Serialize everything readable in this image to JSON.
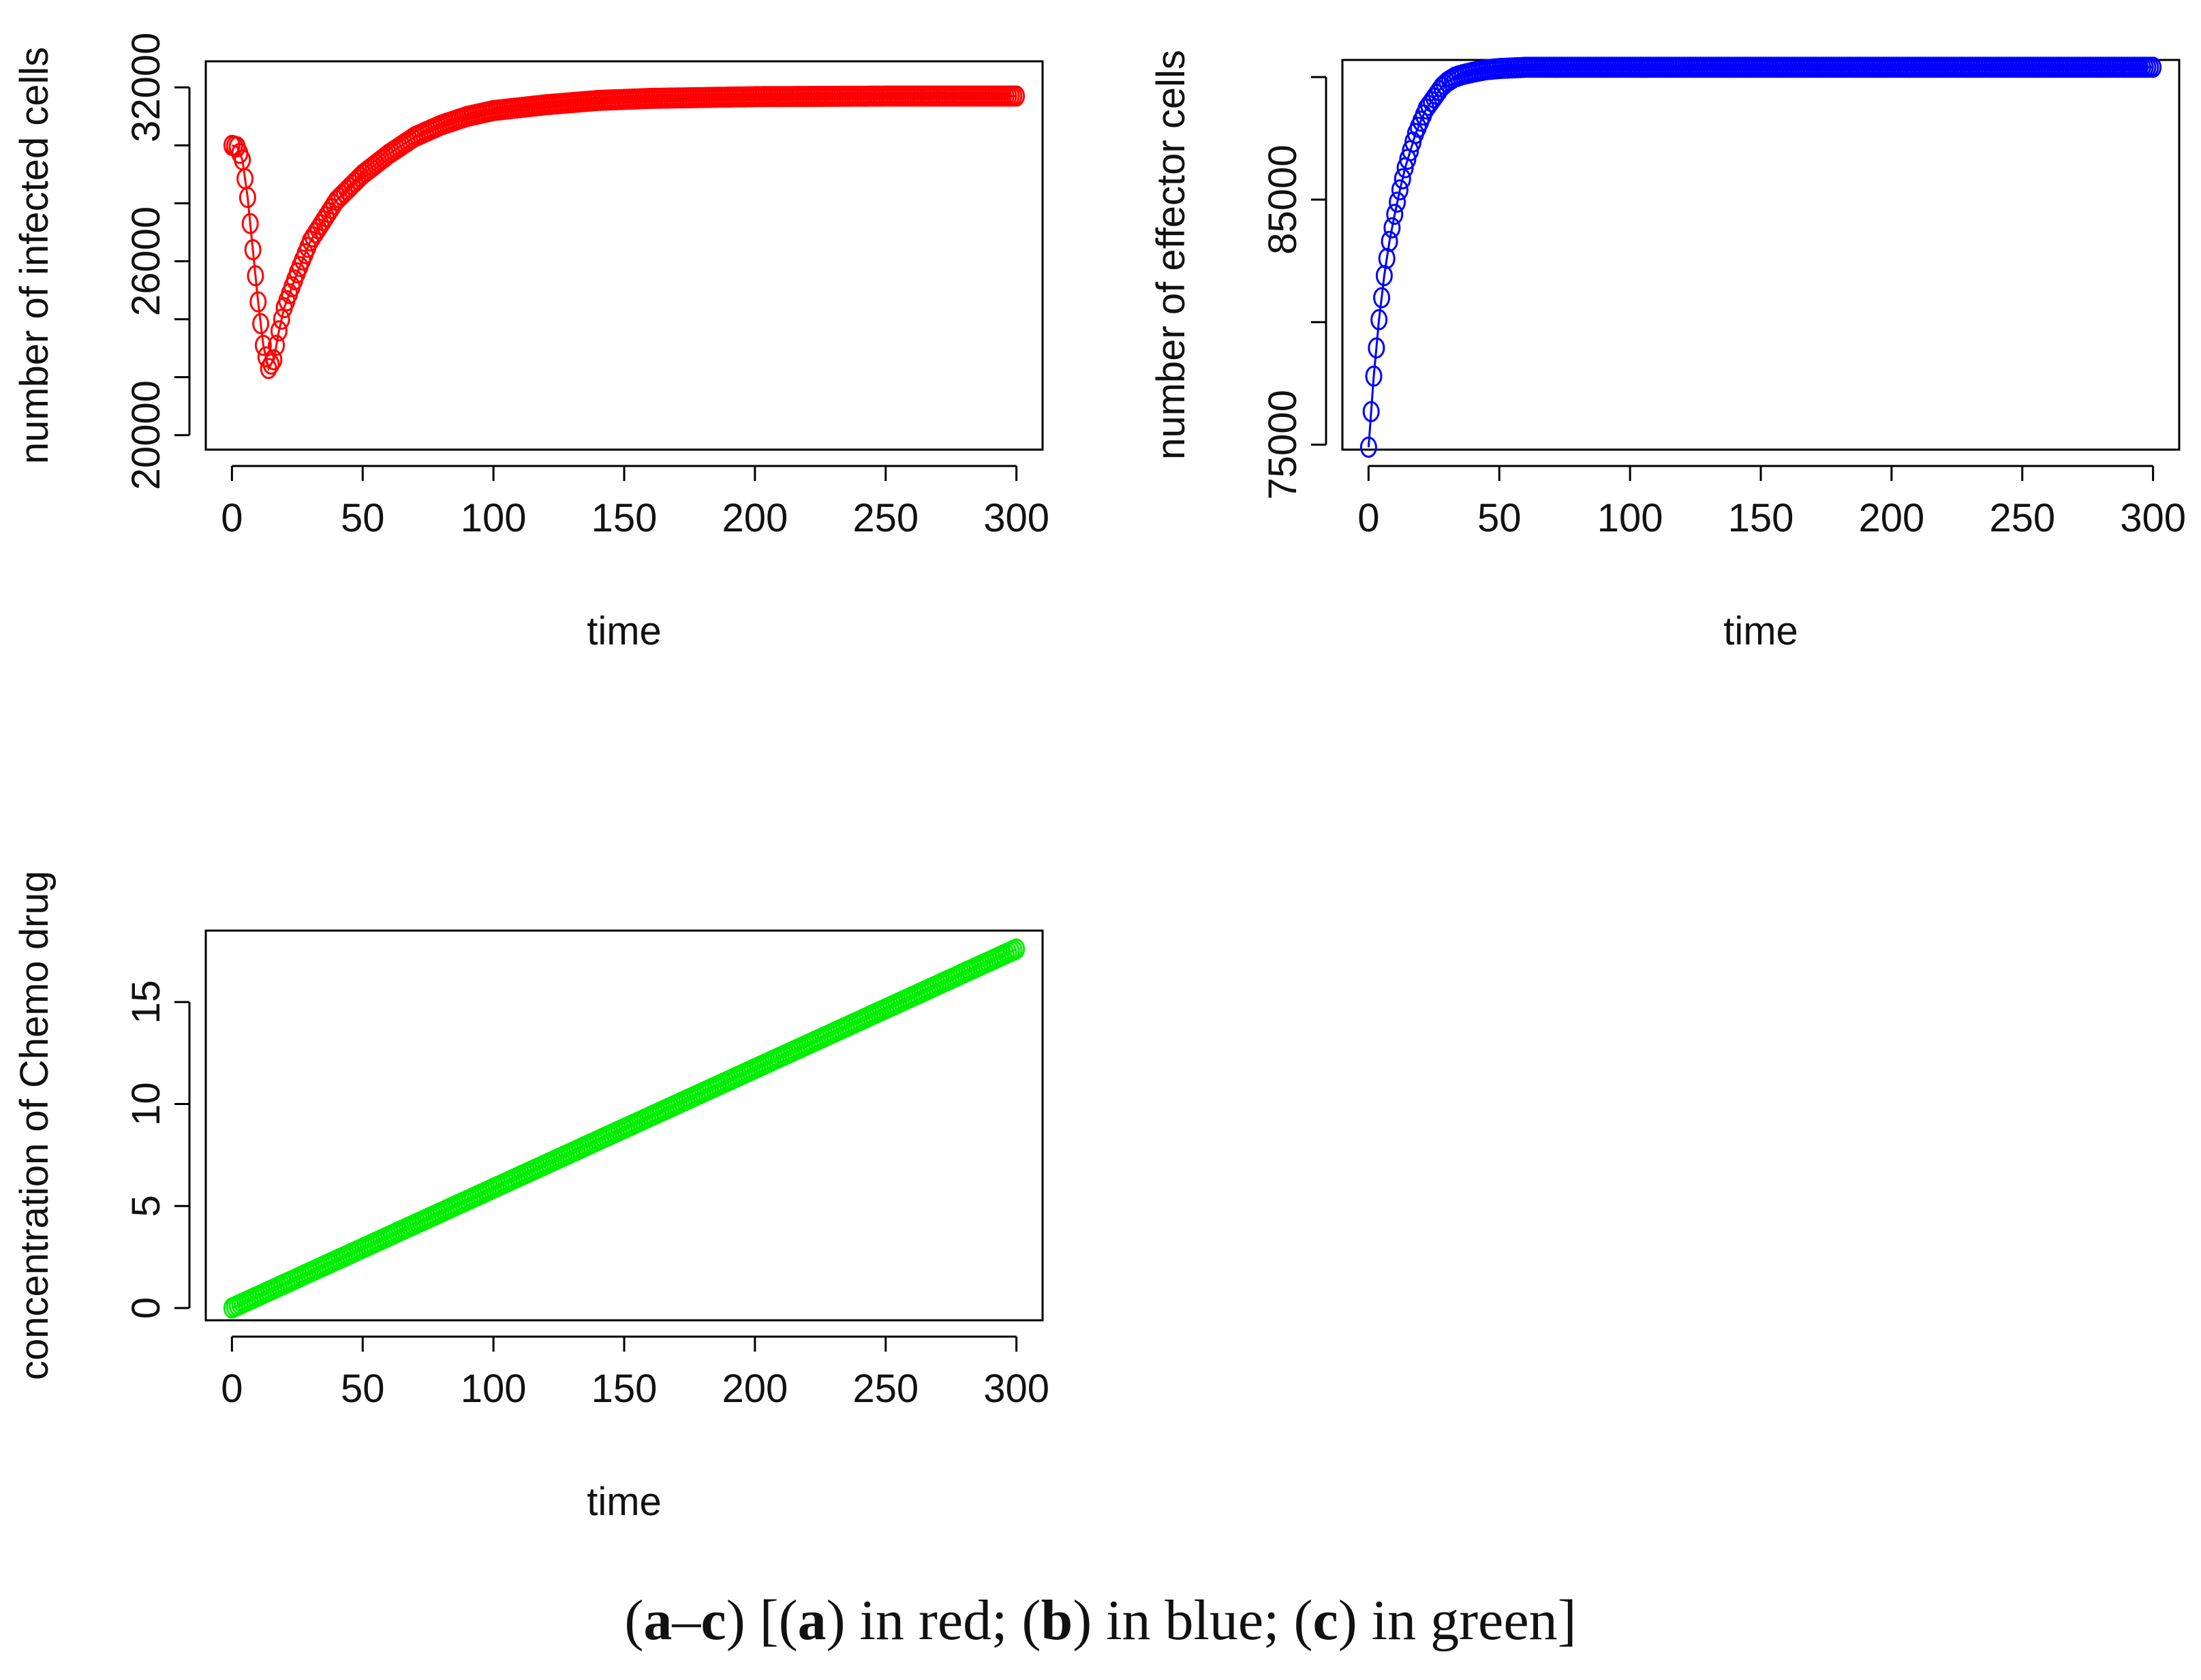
{
  "chart_data": [
    {
      "type": "line",
      "id": "a",
      "xlabel": "time",
      "ylabel": "number of infected cells",
      "xlim": [
        -10,
        310
      ],
      "ylim": [
        19500,
        32900
      ],
      "xticks": [
        0,
        50,
        100,
        150,
        200,
        250,
        300
      ],
      "yticks": [
        20000,
        22000,
        24000,
        26000,
        28000,
        30000,
        32000
      ],
      "ytick_labels_shown": [
        "20000",
        "26000",
        "32000"
      ],
      "color": "#ff0000",
      "series": [
        {
          "name": "infected cells",
          "x": [
            0,
            2,
            4,
            6,
            8,
            10,
            12,
            14,
            16,
            18,
            20,
            25,
            30,
            35,
            40,
            50,
            60,
            70,
            80,
            90,
            100,
            120,
            140,
            160,
            180,
            200,
            250,
            300
          ],
          "y": [
            30000,
            29950,
            29500,
            28200,
            26400,
            24600,
            23100,
            22300,
            22600,
            23600,
            24400,
            25600,
            26700,
            27400,
            28100,
            29000,
            29700,
            30300,
            30700,
            31000,
            31200,
            31400,
            31550,
            31620,
            31650,
            31680,
            31700,
            31700
          ]
        }
      ]
    },
    {
      "type": "line",
      "id": "b",
      "xlabel": "time",
      "ylabel": "number of effector cells",
      "xlim": [
        -10,
        310
      ],
      "ylim": [
        74800,
        90700
      ],
      "xticks": [
        0,
        50,
        100,
        150,
        200,
        250,
        300
      ],
      "yticks": [
        75000,
        80000,
        85000,
        90000
      ],
      "ytick_labels_shown": [
        "75000",
        "85000"
      ],
      "color": "#0000ff",
      "series": [
        {
          "name": "effector cells",
          "x": [
            0,
            2,
            4,
            6,
            8,
            10,
            12,
            14,
            16,
            18,
            20,
            22,
            24,
            26,
            28,
            30,
            33,
            36,
            40,
            45,
            50,
            60,
            80,
            100,
            150,
            200,
            250,
            300
          ],
          "y": [
            74900,
            77800,
            80100,
            81900,
            83300,
            84400,
            85400,
            86300,
            87000,
            87700,
            88200,
            88700,
            89000,
            89300,
            89600,
            89800,
            90000,
            90100,
            90200,
            90300,
            90350,
            90400,
            90400,
            90400,
            90400,
            90400,
            90400,
            90400
          ]
        }
      ]
    },
    {
      "type": "line",
      "id": "c",
      "xlabel": "time",
      "ylabel": "concentration of Chemo drug",
      "xlim": [
        -10,
        310
      ],
      "ylim": [
        -0.6,
        18.5
      ],
      "xticks": [
        0,
        50,
        100,
        150,
        200,
        250,
        300
      ],
      "yticks": [
        0,
        5,
        10,
        15
      ],
      "ytick_labels_shown": [
        "0",
        "5",
        "10",
        "15"
      ],
      "color": "#00ee00",
      "series": [
        {
          "name": "chemo drug",
          "x": [
            0,
            300
          ],
          "y": [
            0,
            17.6
          ]
        }
      ]
    }
  ],
  "caption": {
    "open": "(",
    "a": "a",
    "dash": "–",
    "c": "c",
    "mid1": ") [(",
    "a2": "a",
    "mid2": ") in red; (",
    "b": "b",
    "mid3": ") in blue; (",
    "c2": "c",
    "mid4": ") in green]"
  }
}
